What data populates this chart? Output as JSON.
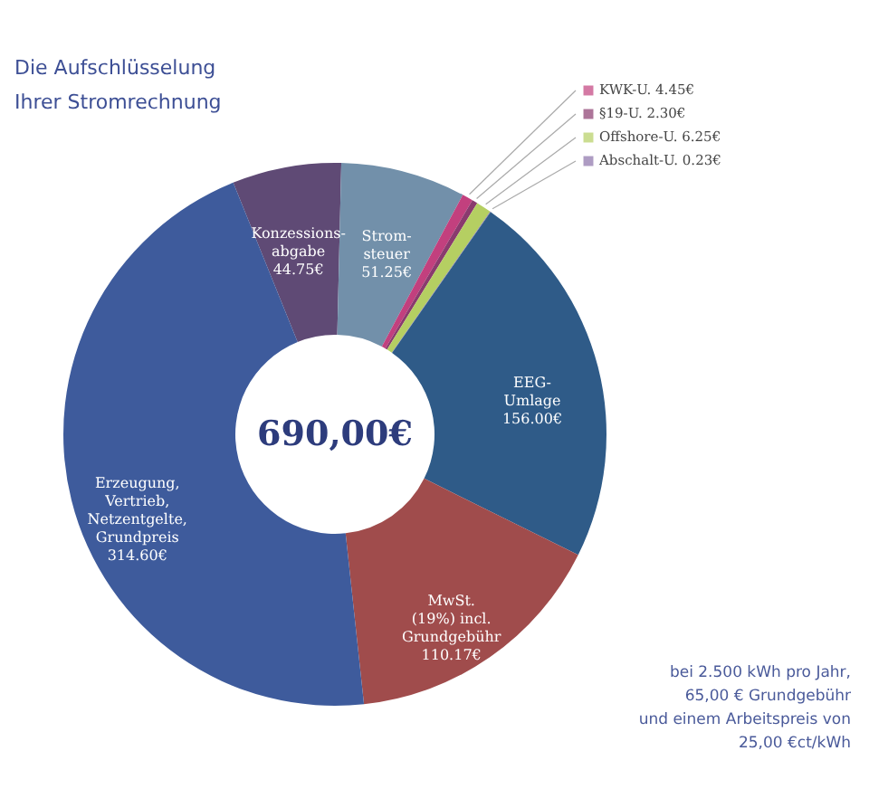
{
  "chart_data": {
    "type": "donut",
    "title": "Die Aufschlüsselung\nIhrer Stromrechnung",
    "categories": [
      "Konzessions-\nabgabe",
      "Strom-\nsteuer",
      "KWK-U.",
      "§19-U.",
      "Offshore-U.",
      "Abschalt-U.",
      "EEG-\nUmlage",
      "MwSt.\n(19%) incl.\nGrundgebühr",
      "Erzeugung,\nVertrieb,\nNetzentgelte,\nGrundpreis"
    ],
    "values": [
      44.75,
      51.25,
      4.45,
      2.3,
      6.25,
      0.23,
      156.0,
      110.17,
      314.6
    ],
    "value_labels": [
      "44.75€",
      "51.25€",
      "4.45€",
      "2.30€",
      "6.25€",
      "0.23€",
      "156.00€",
      "110.17€",
      "314.60€"
    ],
    "colors": [
      "#5f4a75",
      "#7290aa",
      "#c2407e",
      "#8a3a6e",
      "#b5cf62",
      "#8c72aa",
      "#2f5b88",
      "#a04c4c",
      "#3e5b9c"
    ],
    "legend": "top right",
    "annotations": [
      "690,00€",
      "bei 2.500 kWh pro Jahr,\n65,00 € Grundgebühr\nund einem Arbeitspreis von\n25,00 €ct/kWh"
    ]
  }
}
